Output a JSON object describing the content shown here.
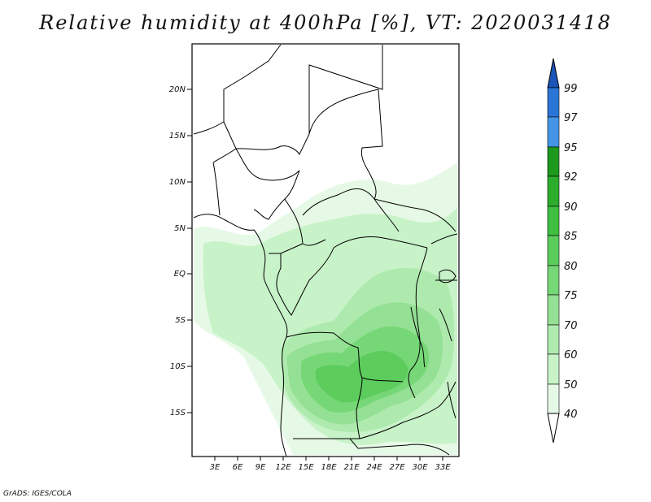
{
  "title": "Relative humidity at 400hPa [%], VT: 2020031418",
  "credit": "GrADS: IGES/COLA",
  "map": {
    "lat_labels": [
      "20N",
      "15N",
      "10N",
      "5N",
      "EQ",
      "5S",
      "10S",
      "15S"
    ],
    "lon_labels": [
      "3E",
      "6E",
      "9E",
      "12E",
      "15E",
      "18E",
      "21E",
      "24E",
      "27E",
      "30E",
      "33E"
    ]
  },
  "colorbar": {
    "labels": [
      "40",
      "50",
      "60",
      "70",
      "75",
      "80",
      "85",
      "90",
      "92",
      "95",
      "97",
      "99"
    ],
    "colors": [
      "#ffffff",
      "#e6f9e6",
      "#c8f2c8",
      "#aeeaae",
      "#94e094",
      "#76d776",
      "#5ccc5c",
      "#40bf40",
      "#2cad2c",
      "#1d9a1d",
      "#4495e6",
      "#2a75d6",
      "#1a55b8"
    ]
  }
}
